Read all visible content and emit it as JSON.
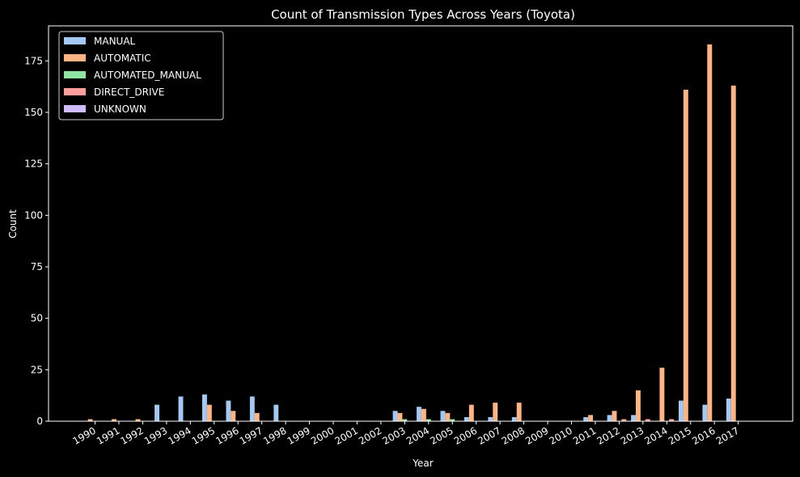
{
  "chart_data": {
    "type": "bar",
    "title": "Count of Transmission Types Across Years (Toyota)",
    "xlabel": "Year",
    "ylabel": "Count",
    "ylim": [
      0,
      192
    ],
    "yticks": [
      0,
      25,
      50,
      75,
      100,
      125,
      150,
      175
    ],
    "grid": false,
    "legend_position": "top-left",
    "categories": [
      "1990",
      "1991",
      "1992",
      "1993",
      "1994",
      "1995",
      "1996",
      "1997",
      "1998",
      "1999",
      "2000",
      "2001",
      "2002",
      "2003",
      "2004",
      "2005",
      "2006",
      "2007",
      "2008",
      "2009",
      "2010",
      "2011",
      "2012",
      "2013",
      "2014",
      "2015",
      "2016",
      "2017"
    ],
    "series": [
      {
        "name": "MANUAL",
        "color": "#a1c9f4",
        "values": [
          0,
          0,
          0,
          8,
          12,
          13,
          10,
          12,
          8,
          0,
          0,
          0,
          0,
          5,
          7,
          5,
          2,
          2,
          2,
          0,
          0,
          2,
          3,
          3,
          0,
          10,
          8,
          11
        ]
      },
      {
        "name": "AUTOMATIC",
        "color": "#ffb482",
        "values": [
          1,
          1,
          1,
          0,
          0,
          8,
          5,
          4,
          0,
          0,
          0,
          0,
          0,
          4,
          6,
          4,
          8,
          9,
          9,
          0,
          0,
          3,
          5,
          15,
          26,
          161,
          183,
          163
        ]
      },
      {
        "name": "AUTOMATED_MANUAL",
        "color": "#8de5a1",
        "values": [
          0,
          0,
          0,
          0,
          0,
          0,
          0,
          0,
          0,
          0,
          0,
          0,
          0,
          1,
          1,
          1,
          0,
          0,
          0,
          0,
          0,
          0,
          0,
          0,
          0,
          0,
          0,
          0
        ]
      },
      {
        "name": "DIRECT_DRIVE",
        "color": "#ff9f9b",
        "values": [
          0,
          0,
          0,
          0,
          0,
          0,
          0,
          0,
          0,
          0,
          0,
          0,
          0,
          0,
          0,
          0,
          0,
          0,
          0,
          0,
          0,
          0,
          1,
          1,
          1,
          0,
          0,
          0
        ]
      },
      {
        "name": "UNKNOWN",
        "color": "#d0bbff",
        "values": [
          0,
          0,
          0,
          0,
          0,
          0,
          0,
          0,
          0,
          0,
          0,
          0,
          0,
          0,
          0,
          0,
          0,
          0,
          0,
          0,
          0,
          0,
          0,
          0,
          0,
          0,
          0,
          0
        ]
      }
    ]
  }
}
